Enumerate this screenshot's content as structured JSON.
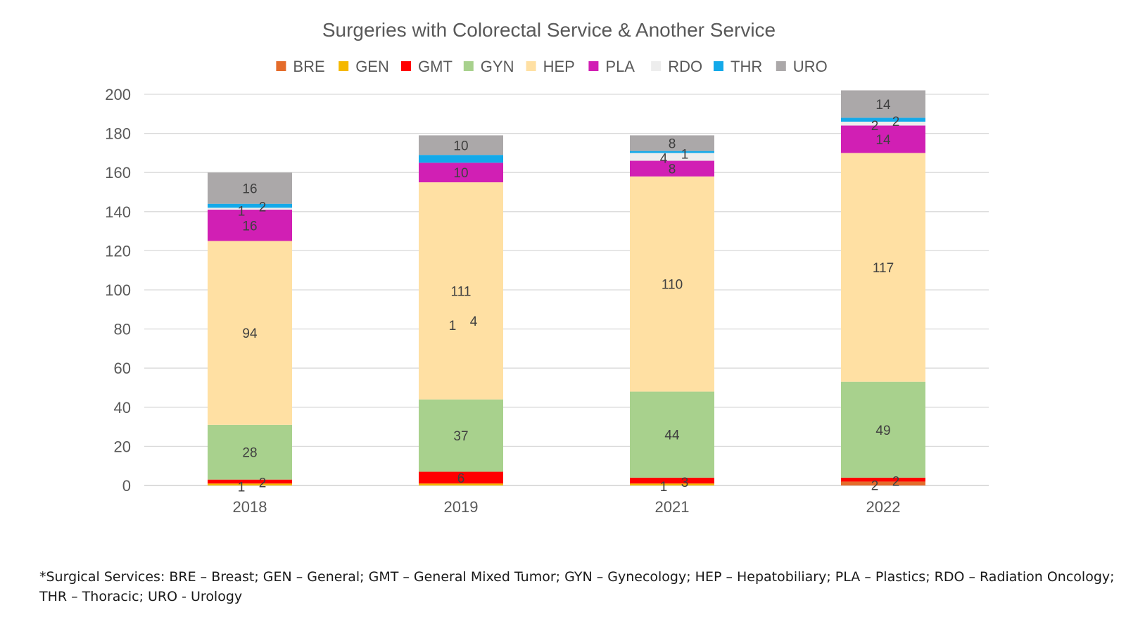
{
  "chart_data": {
    "type": "bar",
    "stacked": true,
    "title": "Surgeries with Colorectal Service & Another Service",
    "xlabel": "",
    "ylabel": "",
    "categories": [
      "2018",
      "2019",
      "2021",
      "2022"
    ],
    "ylim": [
      0,
      200
    ],
    "yticks": [
      0,
      20,
      40,
      60,
      80,
      100,
      120,
      140,
      160,
      180,
      200
    ],
    "grid": true,
    "legend_position": "top",
    "series": [
      {
        "name": "BRE",
        "color": "#E46C2B",
        "values": [
          null,
          null,
          null,
          2
        ],
        "labels": [
          "",
          "",
          "",
          "2"
        ]
      },
      {
        "name": "GEN",
        "color": "#F5B800",
        "values": [
          1,
          1,
          1,
          null
        ],
        "labels": [
          "1",
          "1",
          "1",
          ""
        ]
      },
      {
        "name": "GMT",
        "color": "#FF0000",
        "values": [
          2,
          6,
          3,
          2
        ],
        "labels": [
          "2",
          "6",
          "3",
          "2"
        ]
      },
      {
        "name": "GYN",
        "color": "#A8D18D",
        "values": [
          28,
          37,
          44,
          49
        ],
        "labels": [
          "28",
          "37",
          "44",
          "49"
        ]
      },
      {
        "name": "HEP",
        "color": "#FFE0A3",
        "values": [
          94,
          111,
          110,
          117
        ],
        "labels": [
          "94",
          "111",
          "110",
          "117"
        ]
      },
      {
        "name": "PLA",
        "color": "#D11FB4",
        "values": [
          16,
          10,
          8,
          14
        ],
        "labels": [
          "16",
          "10",
          "8",
          "14"
        ]
      },
      {
        "name": "RDO",
        "color": "#EDEDED",
        "values": [
          1,
          null,
          4,
          2
        ],
        "labels": [
          "1",
          "",
          "4",
          "2"
        ]
      },
      {
        "name": "THR",
        "color": "#13A9E9",
        "values": [
          2,
          4,
          1,
          2
        ],
        "labels": [
          "2",
          "4",
          "1",
          "2"
        ]
      },
      {
        "name": "URO",
        "color": "#ABA8A9",
        "values": [
          16,
          10,
          8,
          14
        ],
        "labels": [
          "16",
          "10",
          "8",
          "14"
        ]
      }
    ]
  },
  "footnote": {
    "line1": "*Surgical Services: BRE – Breast; GEN – General; GMT – General Mixed Tumor; GYN – Gynecology; HEP – Hepatobiliary; PLA – Plastics; RDO – Radiation Oncology;",
    "line2": "THR – Thoracic; URO - Urology"
  }
}
